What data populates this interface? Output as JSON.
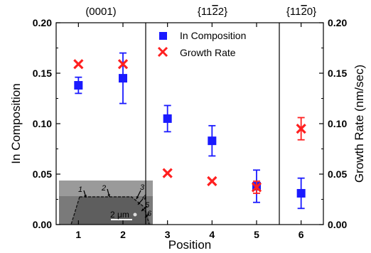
{
  "chart_data": {
    "type": "scatter",
    "xlabel": "Position",
    "ylabel_left": "In Composition",
    "ylabel_right": "Growth Rate (nm/sec)",
    "xlim": [
      0.5,
      6.5
    ],
    "ylim_left": [
      0,
      0.2
    ],
    "ylim_right": [
      0,
      0.2
    ],
    "x_ticks": [
      1,
      2,
      3,
      4,
      5,
      6
    ],
    "y_ticks_left": [
      "0.00",
      "0.05",
      "0.10",
      "0.15",
      "0.20"
    ],
    "y_ticks_right": [
      "0.00",
      "0.05",
      "0.10",
      "0.15",
      "0.20"
    ],
    "facets": [
      {
        "label": "(0001)",
        "from": 0.5,
        "to": 2.5
      },
      {
        "label": "{11̅2̅2}",
        "from": 2.5,
        "to": 5.5
      },
      {
        "label": "{11̅20}",
        "from": 5.5,
        "to": 6.5
      }
    ],
    "facet_labels_text": [
      "(0001)",
      "{11",
      "2",
      "2}",
      "{11",
      "2",
      "0}"
    ],
    "series": [
      {
        "name": "In Composition",
        "axis": "left",
        "color": "#1a1aff",
        "marker": "square",
        "x": [
          1,
          2,
          3,
          4,
          5,
          6
        ],
        "y": [
          0.138,
          0.145,
          0.105,
          0.083,
          0.038,
          0.031
        ],
        "err": [
          0.008,
          0.025,
          0.013,
          0.015,
          0.016,
          0.015
        ]
      },
      {
        "name": "Growth Rate",
        "axis": "right",
        "color": "#ff2020",
        "marker": "x",
        "x": [
          1,
          2,
          3,
          4,
          5,
          6
        ],
        "y": [
          0.159,
          0.159,
          0.051,
          0.043,
          0.037,
          0.095
        ],
        "err": [
          0,
          0,
          0,
          0,
          0.006,
          0.011
        ]
      }
    ],
    "legend_placement": "top-center",
    "inset": {
      "arrow_labels": [
        "1",
        "2",
        "3",
        "4",
        "5",
        "6"
      ],
      "scale_bar": "2 μm"
    }
  }
}
